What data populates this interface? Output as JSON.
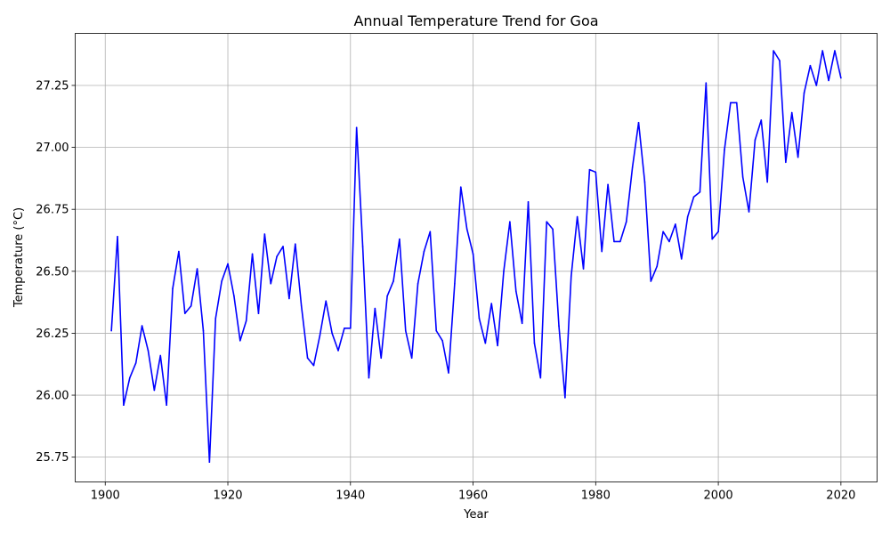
{
  "chart_data": {
    "type": "line",
    "title": "Annual Temperature Trend for Goa",
    "xlabel": "Year",
    "ylabel": "Temperature (°C)",
    "xlim": [
      1895.1,
      2025.9
    ],
    "ylim": [
      25.65,
      27.46
    ],
    "xticks": [
      1900,
      1920,
      1940,
      1960,
      1980,
      2000,
      2020
    ],
    "yticks": [
      25.75,
      26.0,
      26.25,
      26.5,
      26.75,
      27.0,
      27.25
    ],
    "ytick_labels": [
      "25.75",
      "26.00",
      "26.25",
      "26.50",
      "26.75",
      "27.00",
      "27.25"
    ],
    "grid": true,
    "series": [
      {
        "color": "#0000ff",
        "x": [
          1901,
          1902,
          1903,
          1904,
          1905,
          1906,
          1907,
          1908,
          1909,
          1910,
          1911,
          1912,
          1913,
          1914,
          1915,
          1916,
          1917,
          1918,
          1919,
          1920,
          1921,
          1922,
          1923,
          1924,
          1925,
          1926,
          1927,
          1928,
          1929,
          1930,
          1931,
          1932,
          1933,
          1934,
          1935,
          1936,
          1937,
          1938,
          1939,
          1940,
          1941,
          1942,
          1943,
          1944,
          1945,
          1946,
          1947,
          1948,
          1949,
          1950,
          1951,
          1952,
          1953,
          1954,
          1955,
          1956,
          1957,
          1958,
          1959,
          1960,
          1961,
          1962,
          1963,
          1964,
          1965,
          1966,
          1967,
          1968,
          1969,
          1970,
          1971,
          1972,
          1973,
          1974,
          1975,
          1976,
          1977,
          1978,
          1979,
          1980,
          1981,
          1982,
          1983,
          1984,
          1985,
          1986,
          1987,
          1988,
          1989,
          1990,
          1991,
          1992,
          1993,
          1994,
          1995,
          1996,
          1997,
          1998,
          1999,
          2000,
          2001,
          2002,
          2003,
          2004,
          2005,
          2006,
          2007,
          2008,
          2009,
          2010,
          2011,
          2012,
          2013,
          2014,
          2015,
          2016,
          2017,
          2018,
          2019,
          2020
        ],
        "values": [
          26.26,
          26.64,
          25.96,
          26.07,
          26.13,
          26.28,
          26.18,
          26.02,
          26.16,
          25.96,
          26.43,
          26.58,
          26.33,
          26.36,
          26.51,
          26.26,
          25.73,
          26.31,
          26.46,
          26.53,
          26.4,
          26.22,
          26.3,
          26.57,
          26.33,
          26.65,
          26.45,
          26.56,
          26.6,
          26.39,
          26.61,
          26.36,
          26.15,
          26.12,
          26.24,
          26.38,
          26.25,
          26.18,
          26.27,
          26.27,
          27.08,
          26.6,
          26.07,
          26.35,
          26.15,
          26.4,
          26.46,
          26.63,
          26.26,
          26.15,
          26.45,
          26.58,
          26.66,
          26.26,
          26.22,
          26.09,
          26.45,
          26.84,
          26.67,
          26.57,
          26.31,
          26.21,
          26.37,
          26.2,
          26.5,
          26.7,
          26.42,
          26.29,
          26.78,
          26.21,
          26.07,
          26.7,
          26.67,
          26.28,
          25.99,
          26.48,
          26.72,
          26.51,
          26.91,
          26.9,
          26.58,
          26.85,
          26.62,
          26.62,
          26.7,
          26.92,
          27.1,
          26.86,
          26.46,
          26.52,
          26.66,
          26.62,
          26.69,
          26.55,
          26.72,
          26.8,
          26.82,
          27.26,
          26.63,
          26.66,
          26.99,
          27.18,
          27.18,
          26.88,
          26.74,
          27.03,
          27.11,
          26.86,
          27.39,
          27.35,
          26.94,
          27.14,
          26.96,
          27.22,
          27.33,
          27.25,
          27.39,
          27.27,
          27.39,
          27.28
        ]
      }
    ]
  }
}
